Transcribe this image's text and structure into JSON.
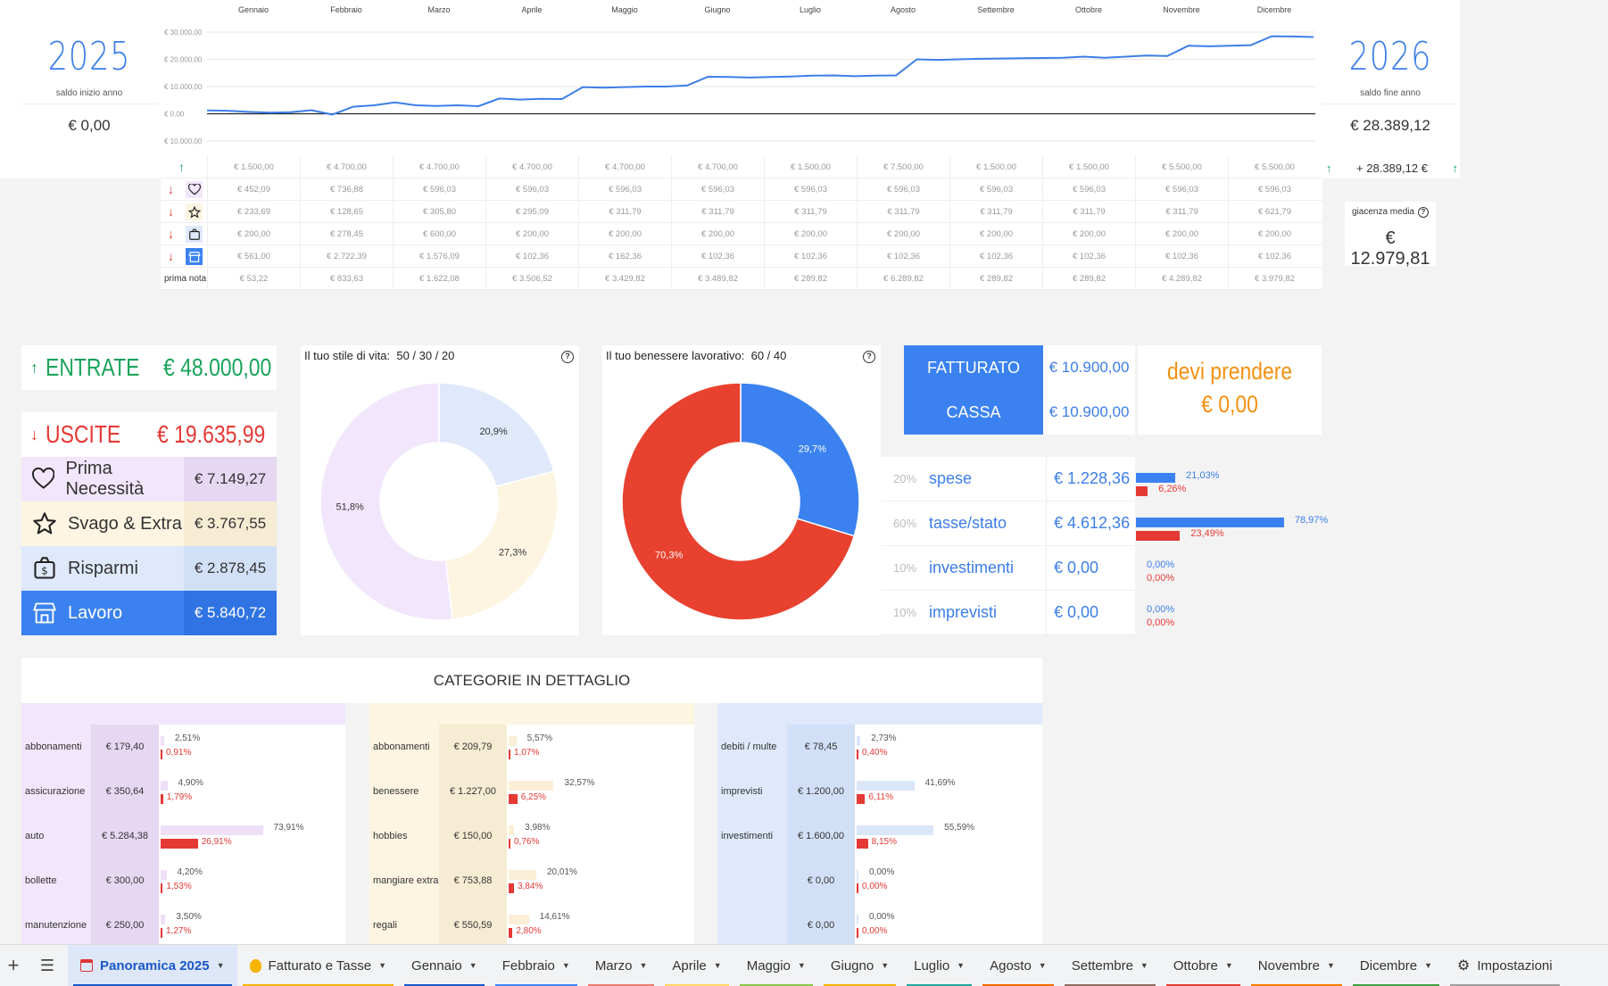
{
  "header": {
    "year_start": "2025",
    "year_start_label": "saldo inizio anno",
    "year_start_value": "€ 0,00",
    "year_end": "2026",
    "year_end_label": "saldo fine anno",
    "year_end_value": "€ 28.389,12",
    "year_end_delta": "+ 28.389,12 €",
    "giacenza_label": "giacenza media",
    "giacenza_value": "€ 12.979,81"
  },
  "months": [
    "Gennaio",
    "Febbraio",
    "Marzo",
    "Aprile",
    "Maggio",
    "Giugno",
    "Luglio",
    "Agosto",
    "Settembre",
    "Ottobre",
    "Novembre",
    "Dicembre"
  ],
  "chart_data": {
    "type": "line",
    "y_ticks": [
      "€ 30.000,00",
      "€ 20.000,00",
      "€ 10.000,00",
      "€ 0,00",
      "€ 10.000,00"
    ],
    "ylim": [
      -10000,
      30000
    ],
    "series": [
      {
        "values": [
          1200,
          1100,
          700,
          400,
          600,
          1300,
          -300,
          2600,
          3100,
          4200,
          3100,
          2900,
          3100,
          2800,
          5600,
          5200,
          5500,
          5400,
          9800,
          9600,
          9800,
          10000,
          10000,
          10400,
          13600,
          13500,
          13300,
          13500,
          13700,
          14000,
          14100,
          13800,
          14000,
          14100,
          20000,
          19800,
          20000,
          20200,
          20300,
          20400,
          20500,
          20600,
          21000,
          20600,
          21000,
          21400,
          21200,
          25000,
          24800,
          25000,
          25200,
          28500,
          28400,
          28200
        ]
      }
    ]
  },
  "rows": {
    "entrate": [
      "€ 1.500,00",
      "€ 4.700,00",
      "€ 4.700,00",
      "€ 4.700,00",
      "€ 4.700,00",
      "€ 4.700,00",
      "€ 1.500,00",
      "€ 7.500,00",
      "€ 1.500,00",
      "€ 1.500,00",
      "€ 5.500,00",
      "€ 5.500,00"
    ],
    "necessita": [
      "€ 452,09",
      "€ 736,88",
      "€ 596,03",
      "€ 596,03",
      "€ 596,03",
      "€ 596,03",
      "€ 596,03",
      "€ 596,03",
      "€ 596,03",
      "€ 596,03",
      "€ 596,03",
      "€ 596,03"
    ],
    "svago": [
      "€ 233,69",
      "€ 128,65",
      "€ 305,80",
      "€ 295,09",
      "€ 311,79",
      "€ 311,79",
      "€ 311,79",
      "€ 311,79",
      "€ 311,79",
      "€ 311,79",
      "€ 311,79",
      "€ 621,79"
    ],
    "risparmi": [
      "€ 200,00",
      "€ 278,45",
      "€ 600,00",
      "€ 200,00",
      "€ 200,00",
      "€ 200,00",
      "€ 200,00",
      "€ 200,00",
      "€ 200,00",
      "€ 200,00",
      "€ 200,00",
      "€ 200,00"
    ],
    "lavoro": [
      "€ 561,00",
      "€ 2.722,39",
      "€ 1.576,09",
      "€ 102,36",
      "€ 162,36",
      "€ 102,36",
      "€ 102,36",
      "€ 102,36",
      "€ 102,36",
      "€ 102,36",
      "€ 102,36",
      "€ 102,36"
    ],
    "prima_nota_label": "prima nota",
    "prima_nota": [
      "€ 53,22",
      "€ 833,63",
      "€ 1.622,08",
      "€ 3.506,52",
      "€ 3.429,82",
      "€ 3.489,82",
      "€ 289,82",
      "€ 6.289,82",
      "€ 289,82",
      "€ 289,82",
      "€ 4.289,82",
      "€ 3.979,82"
    ]
  },
  "summary": {
    "entrate_label": "ENTRATE",
    "entrate_value": "€ 48.000,00",
    "uscite_label": "USCITE",
    "uscite_value": "€ 19.635,99",
    "items": [
      {
        "label": "Prima Necessità",
        "value": "€ 7.149,27"
      },
      {
        "label": "Svago & Extra",
        "value": "€ 3.767,55"
      },
      {
        "label": "Risparmi",
        "value": "€ 2.878,45"
      },
      {
        "label": "Lavoro",
        "value": "€ 5.840,72"
      }
    ]
  },
  "donut1": {
    "title": "Il tuo stile di vita:",
    "ratio": "50 / 30 / 20",
    "slices": [
      {
        "label": "20,9%",
        "value": 20.9,
        "color": "#dfe9fb"
      },
      {
        "label": "27,3%",
        "value": 27.3,
        "color": "#fdf5e2"
      },
      {
        "label": "51,8%",
        "value": 51.8,
        "color": "#f1e6fb"
      }
    ]
  },
  "donut2": {
    "title": "Il tuo benessere lavorativo:",
    "ratio": "60 / 40",
    "slices": [
      {
        "label": "29,7%",
        "value": 29.7,
        "color": "#3b82f0"
      },
      {
        "label": "70,3%",
        "value": 70.3,
        "color": "#e8412f"
      }
    ]
  },
  "fatturato": {
    "fatturato_label": "FATTURATO",
    "fatturato_value": "€ 10.900,00",
    "cassa_label": "CASSA",
    "cassa_value": "€ 10.900,00",
    "devi_label": "devi prendere",
    "devi_value": "€ 0,00"
  },
  "tax_rows": [
    {
      "pct": "20%",
      "name": "spese",
      "value": "€ 1.228,36",
      "blue_pct": "21,03%",
      "red_pct": "6,26%",
      "blue_frac": 0.2103,
      "red_frac": 0.0626
    },
    {
      "pct": "60%",
      "name": "tasse/stato",
      "value": "€ 4.612,36",
      "blue_pct": "78,97%",
      "red_pct": "23,49%",
      "blue_frac": 0.7897,
      "red_frac": 0.2349
    },
    {
      "pct": "10%",
      "name": "investimenti",
      "value": "€ 0,00",
      "blue_pct": "0,00%",
      "red_pct": "0,00%",
      "blue_frac": 0,
      "red_frac": 0
    },
    {
      "pct": "10%",
      "name": "imprevisti",
      "value": "€ 0,00",
      "blue_pct": "0,00%",
      "red_pct": "0,00%",
      "blue_frac": 0,
      "red_frac": 0
    }
  ],
  "categories": {
    "title": "CATEGORIE IN DETTAGLIO",
    "col1": [
      {
        "name": "abbonamenti",
        "value": "€ 179,40",
        "p1": "2,51%",
        "p2": "0,91%",
        "f1": 0.0251,
        "f2": 0.0091
      },
      {
        "name": "assicurazione",
        "value": "€ 350,64",
        "p1": "4,90%",
        "p2": "1,79%",
        "f1": 0.049,
        "f2": 0.0179
      },
      {
        "name": "auto",
        "value": "€ 5.284,38",
        "p1": "73,91%",
        "p2": "26,91%",
        "f1": 0.7391,
        "f2": 0.2691
      },
      {
        "name": "bollette",
        "value": "€ 300,00",
        "p1": "4,20%",
        "p2": "1,53%",
        "f1": 0.042,
        "f2": 0.0153
      },
      {
        "name": "manutenzione",
        "value": "€ 250,00",
        "p1": "3,50%",
        "p2": "1,27%",
        "f1": 0.035,
        "f2": 0.0127
      }
    ],
    "col2": [
      {
        "name": "abbonamenti",
        "value": "€ 209,79",
        "p1": "5,57%",
        "p2": "1,07%",
        "f1": 0.0557,
        "f2": 0.0107
      },
      {
        "name": "benessere",
        "value": "€ 1.227,00",
        "p1": "32,57%",
        "p2": "6,25%",
        "f1": 0.3257,
        "f2": 0.0625
      },
      {
        "name": "hobbies",
        "value": "€ 150,00",
        "p1": "3,98%",
        "p2": "0,76%",
        "f1": 0.0398,
        "f2": 0.0076
      },
      {
        "name": "mangiare extra",
        "value": "€ 753,88",
        "p1": "20,01%",
        "p2": "3,84%",
        "f1": 0.2001,
        "f2": 0.0384
      },
      {
        "name": "regali",
        "value": "€ 550,59",
        "p1": "14,61%",
        "p2": "2,80%",
        "f1": 0.1461,
        "f2": 0.028
      }
    ],
    "col3": [
      {
        "name": "debiti / multe",
        "value": "€ 78,45",
        "p1": "2,73%",
        "p2": "0,40%",
        "f1": 0.0273,
        "f2": 0.004
      },
      {
        "name": "imprevisti",
        "value": "€ 1.200,00",
        "p1": "41,69%",
        "p2": "6,11%",
        "f1": 0.4169,
        "f2": 0.0611
      },
      {
        "name": "investimenti",
        "value": "€ 1.600,00",
        "p1": "55,59%",
        "p2": "8,15%",
        "f1": 0.5559,
        "f2": 0.0815
      },
      {
        "name": "",
        "value": "€ 0,00",
        "p1": "0,00%",
        "p2": "0,00%",
        "f1": 0,
        "f2": 0
      },
      {
        "name": "",
        "value": "€ 0,00",
        "p1": "0,00%",
        "p2": "0,00%",
        "f1": 0,
        "f2": 0
      }
    ]
  },
  "tabs": [
    {
      "label": "Panoramica 2025",
      "active": true,
      "color": "#1a57c7",
      "icon": "calendar-icon"
    },
    {
      "label": "Fatturato e Tasse",
      "color": "#f4b400",
      "icon": "money-bag-icon"
    },
    {
      "label": "Gennaio",
      "color": "#1a57c7"
    },
    {
      "label": "Febbraio",
      "color": "#4285f4"
    },
    {
      "label": "Marzo",
      "color": "#e67c73"
    },
    {
      "label": "Aprile",
      "color": "#ffd666"
    },
    {
      "label": "Maggio",
      "color": "#8bc34a"
    },
    {
      "label": "Giugno",
      "color": "#f4b400"
    },
    {
      "label": "Luglio",
      "color": "#26a69a"
    },
    {
      "label": "Agosto",
      "color": "#ef6c00"
    },
    {
      "label": "Settembre",
      "color": "#8d6e63"
    },
    {
      "label": "Ottobre",
      "color": "#e53935"
    },
    {
      "label": "Novembre",
      "color": "#f57c00"
    },
    {
      "label": "Dicembre",
      "color": "#43a047"
    },
    {
      "label": "Impostazioni",
      "color": "#9e9e9e",
      "icon": "gear-icon"
    }
  ]
}
